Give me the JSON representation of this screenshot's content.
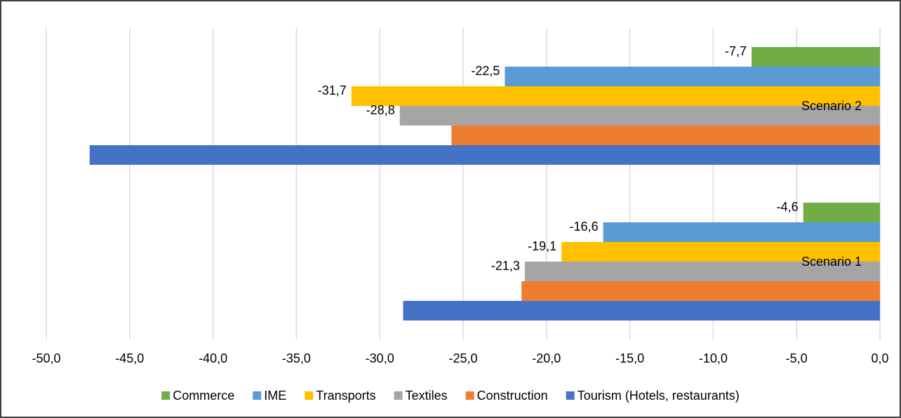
{
  "chart_data": {
    "type": "bar",
    "orientation": "horizontal",
    "categories": [
      "Scenario 1",
      "Scenario 2"
    ],
    "series": [
      {
        "name": "Commerce",
        "color": "#70ad47",
        "values": [
          -4.6,
          -7.7
        ],
        "value_labels": [
          "-4,6",
          "-7,7"
        ]
      },
      {
        "name": "IME",
        "color": "#5b9bd5",
        "values": [
          -16.6,
          -22.5
        ],
        "value_labels": [
          "-16,6",
          "-22,5"
        ]
      },
      {
        "name": "Transports",
        "color": "#ffc000",
        "values": [
          -19.1,
          -31.7
        ],
        "value_labels": [
          "-19,1",
          "-31,7"
        ]
      },
      {
        "name": "Textiles",
        "color": "#a5a5a5",
        "values": [
          -21.3,
          -28.8
        ],
        "value_labels": [
          "-21,3",
          "-28,8"
        ]
      },
      {
        "name": "Construction",
        "color": "#ed7d31",
        "values": [
          -21.5,
          -25.7
        ],
        "value_labels": [
          null,
          null
        ]
      },
      {
        "name": "Tourism (Hotels, restaurants)",
        "color": "#4472c4",
        "values": [
          -28.6,
          -47.4
        ],
        "value_labels": [
          null,
          null
        ]
      }
    ],
    "xlim": [
      -50,
      0
    ],
    "xticks": [
      {
        "value": -50,
        "label": "-50,0"
      },
      {
        "value": -45,
        "label": "-45,0"
      },
      {
        "value": -40,
        "label": "-40,0"
      },
      {
        "value": -35,
        "label": "-35,0"
      },
      {
        "value": -30,
        "label": "-30,0"
      },
      {
        "value": -25,
        "label": "-25,0"
      },
      {
        "value": -20,
        "label": "-20,0"
      },
      {
        "value": -15,
        "label": "-15,0"
      },
      {
        "value": -10,
        "label": "-10,0"
      },
      {
        "value": -5,
        "label": "-5,0"
      },
      {
        "value": 0,
        "label": "0,0"
      }
    ],
    "grid": true,
    "legend": "bottom"
  }
}
